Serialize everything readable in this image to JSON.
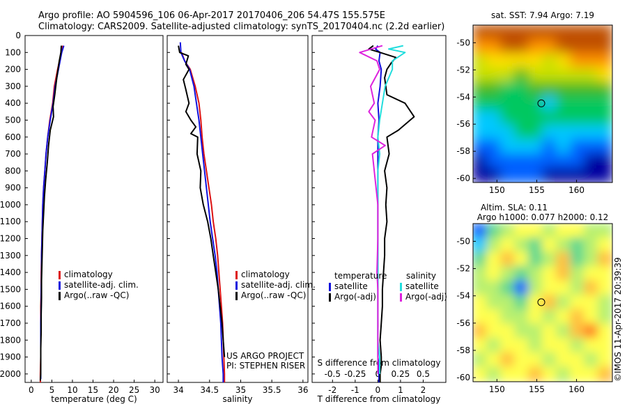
{
  "header": {
    "line1": "Argo profile: AO 5904596_106 06-Apr-2017 20170406_206 54.47S 155.575E",
    "line2": "Climatology: CARS2009. Satellite-adjusted climatology: synTS_20170404.nc (2.2d earlier)"
  },
  "colors": {
    "climatology": "#dd1111",
    "satellite": "#1111dd",
    "argo": "#000000",
    "satellite_salinity": "#22dddd",
    "argo_salinity": "#dd22dd"
  },
  "project_note": [
    "US ARGO PROJECT",
    "PI: STEPHEN RISER"
  ],
  "watermark": "©IMOS 11-Apr-2017 20:39:39",
  "chart_data": [
    {
      "type": "line",
      "xlabel": "temperature (deg C)",
      "xticks": [
        0,
        5,
        10,
        15,
        20,
        25,
        30
      ],
      "xlim": [
        -1.5,
        32
      ],
      "yticks": [
        0,
        100,
        200,
        300,
        400,
        500,
        600,
        700,
        800,
        900,
        1000,
        1100,
        1200,
        1300,
        1400,
        1500,
        1600,
        1700,
        1800,
        1900,
        2000
      ],
      "ylim": [
        0,
        2050
      ],
      "y_reversed": true,
      "legend": [
        "climatology",
        "satellite-adj. clim.",
        "Argo(..raw -QC)"
      ],
      "legend_position": "lower-center",
      "series": [
        {
          "name": "climatology",
          "color": "#dd1111",
          "x": [
            7.6,
            7.3,
            6.4,
            5.6,
            5.2,
            4.5,
            4.0,
            3.6,
            3.3,
            3.0,
            2.8,
            2.7,
            2.6,
            2.5,
            2.4,
            2.4,
            2.3,
            2.3,
            2.3,
            2.3,
            2.2,
            2.2,
            2.2
          ],
          "y": [
            60,
            100,
            200,
            300,
            400,
            500,
            600,
            700,
            800,
            900,
            1000,
            1100,
            1200,
            1300,
            1400,
            1500,
            1600,
            1700,
            1800,
            1900,
            2000,
            2030,
            2050
          ]
        },
        {
          "name": "satellite-adj. clim.",
          "color": "#1111dd",
          "x": [
            7.9,
            7.4,
            6.6,
            5.8,
            5.3,
            4.6,
            4.0,
            3.6,
            3.3,
            3.0,
            2.8,
            2.7,
            2.6,
            2.5,
            2.5,
            2.4,
            2.4,
            2.3,
            2.3,
            2.3,
            2.3,
            2.3
          ],
          "y": [
            60,
            100,
            200,
            300,
            400,
            500,
            600,
            700,
            800,
            900,
            1000,
            1100,
            1200,
            1300,
            1400,
            1500,
            1600,
            1700,
            1800,
            1900,
            2000,
            2030
          ]
        },
        {
          "name": "Argo(..raw -QC)",
          "color": "#000000",
          "x": [
            7.3,
            7.2,
            6.8,
            6.2,
            5.7,
            5.3,
            5.4,
            4.6,
            4.2,
            3.9,
            3.5,
            3.2,
            3.0,
            2.8,
            2.7,
            2.6,
            2.5,
            2.5,
            2.4,
            2.4,
            2.3,
            2.3,
            2.3,
            2.2
          ],
          "y": [
            60,
            100,
            150,
            250,
            350,
            420,
            480,
            560,
            650,
            750,
            850,
            950,
            1050,
            1150,
            1250,
            1350,
            1450,
            1550,
            1650,
            1750,
            1850,
            1950,
            2000,
            2040
          ]
        }
      ]
    },
    {
      "type": "line",
      "xlabel": "salinity",
      "xticks": [
        34,
        34.5,
        35,
        35.5,
        36
      ],
      "xlim": [
        33.82,
        36.08
      ],
      "y_reversed": true,
      "ylim": [
        0,
        2050
      ],
      "legend": [
        "climatology",
        "satellite-adj. clim.",
        "Argo(..raw -QC)"
      ],
      "legend_position": "lower-right",
      "series": [
        {
          "name": "climatology",
          "color": "#dd1111",
          "x": [
            34.05,
            34.1,
            34.19,
            34.27,
            34.33,
            34.36,
            34.38,
            34.41,
            34.45,
            34.49,
            34.53,
            34.56,
            34.6,
            34.63,
            34.65,
            34.67,
            34.69,
            34.71,
            34.72,
            34.73,
            34.74,
            34.74,
            34.74
          ],
          "y": [
            100,
            150,
            200,
            300,
            400,
            500,
            600,
            700,
            800,
            900,
            1000,
            1100,
            1200,
            1300,
            1400,
            1500,
            1600,
            1700,
            1800,
            1900,
            2000,
            2030,
            2050
          ]
        },
        {
          "name": "satellite-adj. clim.",
          "color": "#1111dd",
          "x": [
            34.03,
            34.04,
            34.1,
            34.18,
            34.25,
            34.29,
            34.33,
            34.36,
            34.39,
            34.42,
            34.45,
            34.48,
            34.51,
            34.55,
            34.59,
            34.62,
            34.64,
            34.66,
            34.68,
            34.69,
            34.7,
            34.71,
            34.72,
            34.72,
            34.72
          ],
          "y": [
            40,
            100,
            150,
            200,
            300,
            400,
            500,
            600,
            700,
            800,
            900,
            1000,
            1100,
            1200,
            1300,
            1400,
            1500,
            1600,
            1700,
            1800,
            1900,
            1950,
            2000,
            2030,
            2050
          ]
        },
        {
          "name": "Argo(..raw -QC)",
          "color": "#000000",
          "x": [
            34.0,
            34.02,
            34.16,
            34.12,
            34.17,
            34.08,
            34.12,
            34.17,
            34.12,
            34.2,
            34.28,
            34.2,
            34.31,
            34.3,
            34.36,
            34.35,
            34.4,
            34.47,
            34.52,
            34.56,
            34.6,
            34.64,
            34.67,
            34.7,
            34.72,
            34.74
          ],
          "y": [
            60,
            100,
            120,
            170,
            200,
            260,
            320,
            400,
            450,
            500,
            540,
            580,
            600,
            700,
            800,
            900,
            1000,
            1100,
            1200,
            1300,
            1400,
            1500,
            1600,
            1700,
            1800,
            1900
          ]
        }
      ]
    },
    {
      "type": "line",
      "xlabel": "T difference from climatology",
      "top_axis_label": "S difference from climatology",
      "xticks": [
        -2,
        -1,
        0,
        1,
        2
      ],
      "xticklabels": [
        "-2",
        "-1",
        "0",
        "1",
        "2"
      ],
      "xlim": [
        -2.9,
        3.0
      ],
      "top_xticks": [
        -0.5,
        -0.25,
        0,
        0.25,
        0.5
      ],
      "top_xticklabels": [
        "-0.5",
        "-0.25",
        "0",
        "0.25",
        "0.5"
      ],
      "y_reversed": true,
      "ylim": [
        0,
        2050
      ],
      "legend": {
        "temperature_header": "temperature",
        "salinity_header": "salinity",
        "entries": [
          "satellite",
          "Argo(-adj)",
          "satellite",
          "Argo(-adj)"
        ]
      },
      "legend_position": "lower-center",
      "series": [
        {
          "name": "satellite",
          "group": "temperature",
          "color": "#1111dd",
          "x": [
            0.0,
            -0.1,
            0.1,
            0.05,
            0.15,
            0.1,
            0.0,
            0.05,
            0.0,
            0.0,
            0.0,
            0.0,
            0.0,
            0.0,
            0.0,
            0.0,
            0.0,
            0.0,
            0.0,
            0.0,
            0.0,
            0.0,
            0.05,
            0.05,
            0.05
          ],
          "y": [
            60,
            80,
            100,
            150,
            200,
            300,
            400,
            500,
            600,
            700,
            800,
            900,
            1000,
            1100,
            1200,
            1300,
            1400,
            1500,
            1600,
            1700,
            1800,
            1900,
            1950,
            2000,
            2050
          ]
        },
        {
          "name": "Argo(-adj)",
          "group": "temperature",
          "color": "#000000",
          "x": [
            -0.2,
            -0.4,
            0.1,
            0.8,
            0.6,
            0.4,
            0.3,
            0.35,
            0.4,
            1.2,
            1.6,
            0.9,
            0.4,
            0.5,
            0.3,
            0.4,
            0.35,
            0.4,
            0.3,
            0.3,
            0.25,
            0.2,
            0.2,
            0.15,
            0.1,
            0.15,
            0.15,
            0.1,
            0.1,
            0.1
          ],
          "y": [
            60,
            80,
            100,
            130,
            160,
            200,
            250,
            300,
            350,
            400,
            480,
            560,
            600,
            700,
            800,
            900,
            1000,
            1100,
            1200,
            1300,
            1400,
            1500,
            1600,
            1700,
            1800,
            1900,
            1950,
            2000,
            2030,
            2050
          ]
        },
        {
          "name": "satellite",
          "group": "salinity",
          "color": "#22dddd",
          "x": [
            0.28,
            0.12,
            0.3,
            0.16,
            0.16,
            0.08,
            0.05,
            0.02,
            0.0,
            0.02,
            0.0,
            0.0,
            0.0,
            0.0,
            0.0,
            0.0,
            0.0,
            0.0,
            0.0,
            0.0,
            0.02,
            0.02
          ],
          "y": [
            60,
            80,
            100,
            150,
            200,
            300,
            400,
            500,
            600,
            700,
            800,
            900,
            1000,
            1100,
            1200,
            1300,
            1400,
            1500,
            1600,
            1800,
            1900,
            2000
          ]
        },
        {
          "name": "Argo(-adj)",
          "group": "salinity",
          "color": "#dd22dd",
          "x": [
            0.05,
            -0.2,
            -0.01,
            0.02,
            -0.08,
            -0.04,
            -0.1,
            -0.03,
            -0.07,
            0.08,
            -0.06,
            -0.04,
            -0.02,
            0.0,
            0.0,
            0.0,
            -0.01,
            0.0,
            0.0,
            0.0,
            0.0
          ],
          "y": [
            60,
            100,
            150,
            200,
            300,
            400,
            450,
            500,
            600,
            650,
            700,
            800,
            900,
            1000,
            1100,
            1200,
            1400,
            1500,
            1600,
            1800,
            2000
          ]
        }
      ]
    },
    {
      "type": "heatmap",
      "title": "sat. SST: 7.94 Argo: 7.19",
      "xticks": [
        150,
        155,
        160
      ],
      "xlim": [
        147,
        164.5
      ],
      "yticks": [
        -50,
        -52,
        -54,
        -56,
        -58,
        -60
      ],
      "ylim": [
        -60.3,
        -48.7
      ],
      "marker": {
        "lon": 155.575,
        "lat": -54.47
      },
      "colormap": [
        "#0000a0",
        "#0060ff",
        "#00c8ff",
        "#00c860",
        "#40b820",
        "#c8e000",
        "#ffe000",
        "#ff9000",
        "#c05000"
      ]
    },
    {
      "type": "heatmap",
      "title_lines": [
        "Altim. SLA: 0.11",
        "Argo h1000: 0.077 h2000: 0.12"
      ],
      "xticks": [
        150,
        155,
        160
      ],
      "xlim": [
        147,
        164.5
      ],
      "yticks": [
        -50,
        -52,
        -54,
        -56,
        -58,
        -60
      ],
      "ylim": [
        -60.3,
        -48.7
      ],
      "marker": {
        "lon": 155.575,
        "lat": -54.47
      },
      "colormap": [
        "#0000a0",
        "#0060ff",
        "#00c8ff",
        "#60d890",
        "#b8f070",
        "#ffff50",
        "#ffc040",
        "#ff8020",
        "#d04000"
      ]
    }
  ]
}
